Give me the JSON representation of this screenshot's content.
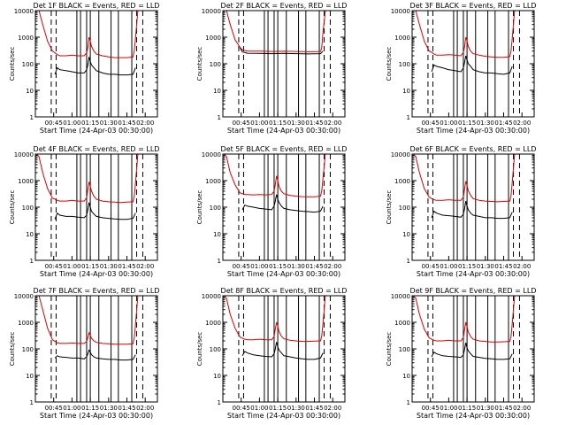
{
  "chart_data": {
    "type": "line",
    "layout": "3x3 grid of detector light curves",
    "xlabel": "Start Time (24-Apr-03 00:30:00)",
    "ylabel": "Counts/sec",
    "xticks": [
      "00:45",
      "01:00",
      "01:15",
      "01:30",
      "01:45",
      "02:00"
    ],
    "xtick_minutes": [
      15,
      30,
      45,
      60,
      75,
      90
    ],
    "xlim_minutes": [
      0,
      100
    ],
    "yscale": "log",
    "ylim": [
      1,
      10000
    ],
    "yticks": [
      "1",
      "10",
      "100",
      "1000",
      "10000"
    ],
    "ytick_values": [
      1,
      10,
      100,
      1000,
      10000
    ],
    "colors": {
      "events": "#000000",
      "lld": "#dd0000",
      "axes": "#000000"
    },
    "panels": [
      {
        "title": "Det 1F BLACK = Events, RED = LLD",
        "series": [
          {
            "name": "Events",
            "color": "#000000",
            "x": [
              16,
              18,
              20,
              25,
              30,
              35,
              40,
              42,
              43,
              44,
              45,
              46,
              48,
              50,
              55,
              60,
              65,
              70,
              75,
              80,
              82
            ],
            "y": [
              40,
              70,
              60,
              55,
              50,
              45,
              45,
              60,
              90,
              180,
              120,
              90,
              70,
              55,
              45,
              40,
              40,
              38,
              38,
              40,
              70
            ]
          },
          {
            "name": "LLD",
            "color": "#dd0000",
            "x": [
              3,
              6,
              10,
              14,
              16,
              18,
              20,
              25,
              30,
              35,
              40,
              42,
              43,
              44,
              45,
              46,
              48,
              50,
              55,
              60,
              65,
              70,
              75,
              80,
              81,
              82,
              84
            ],
            "y": [
              10000,
              3000,
              700,
              300,
              260,
              220,
              200,
              200,
              210,
              200,
              200,
              260,
              400,
              1000,
              700,
              450,
              300,
              230,
              200,
              180,
              170,
              170,
              170,
              180,
              300,
              900,
              10000
            ]
          }
        ]
      },
      {
        "title": "Det 2F BLACK = Events, RED = LLD",
        "series": [
          {
            "name": "Events",
            "color": "#000000",
            "x": [
              14,
              16,
              20,
              30,
              40,
              50,
              60,
              70,
              80,
              82
            ],
            "y": [
              400,
              280,
              250,
              245,
              240,
              245,
              240,
              235,
              240,
              300
            ]
          },
          {
            "name": "LLD",
            "color": "#dd0000",
            "x": [
              3,
              6,
              10,
              14,
              16,
              20,
              30,
              40,
              50,
              60,
              70,
              80,
              81,
              82,
              84
            ],
            "y": [
              10000,
              3000,
              800,
              420,
              330,
              300,
              300,
              290,
              295,
              290,
              285,
              290,
              400,
              1500,
              10000
            ]
          }
        ]
      },
      {
        "title": "Det 3F BLACK = Events, RED = LLD",
        "series": [
          {
            "name": "Events",
            "color": "#000000",
            "x": [
              16,
              18,
              20,
              25,
              30,
              35,
              40,
              42,
              43,
              44,
              45,
              46,
              48,
              50,
              55,
              60,
              65,
              70,
              75,
              80,
              82
            ],
            "y": [
              50,
              90,
              80,
              70,
              60,
              55,
              50,
              70,
              110,
              200,
              140,
              100,
              80,
              60,
              50,
              45,
              45,
              42,
              40,
              45,
              80
            ]
          },
          {
            "name": "LLD",
            "color": "#dd0000",
            "x": [
              3,
              6,
              10,
              14,
              16,
              18,
              20,
              25,
              30,
              35,
              40,
              42,
              43,
              44,
              45,
              46,
              48,
              50,
              55,
              60,
              65,
              70,
              75,
              80,
              81,
              82,
              84
            ],
            "y": [
              10000,
              3000,
              700,
              300,
              270,
              230,
              210,
              210,
              220,
              210,
              200,
              270,
              420,
              1000,
              700,
              450,
              300,
              240,
              210,
              190,
              180,
              175,
              175,
              185,
              300,
              900,
              10000
            ]
          }
        ]
      },
      {
        "title": "Det 4F BLACK = Events, RED = LLD",
        "series": [
          {
            "name": "Events",
            "color": "#000000",
            "x": [
              16,
              18,
              20,
              25,
              30,
              35,
              40,
              42,
              43,
              44,
              45,
              46,
              48,
              50,
              55,
              60,
              65,
              70,
              75,
              80,
              82
            ],
            "y": [
              35,
              60,
              50,
              45,
              45,
              42,
              40,
              50,
              80,
              150,
              100,
              70,
              55,
              45,
              40,
              38,
              36,
              35,
              35,
              38,
              60
            ]
          },
          {
            "name": "LLD",
            "color": "#dd0000",
            "x": [
              1,
              3,
              6,
              10,
              14,
              16,
              18,
              20,
              25,
              30,
              35,
              40,
              42,
              43,
              44,
              45,
              46,
              48,
              50,
              55,
              60,
              65,
              70,
              75,
              80,
              81,
              82,
              84
            ],
            "y": [
              10000,
              8000,
              2000,
              500,
              220,
              200,
              180,
              170,
              170,
              180,
              170,
              170,
              230,
              450,
              900,
              600,
              400,
              260,
              200,
              170,
              160,
              155,
              150,
              155,
              160,
              250,
              800,
              10000
            ]
          }
        ]
      },
      {
        "title": "Det 5F BLACK = Events, RED = LLD",
        "series": [
          {
            "name": "Events",
            "color": "#000000",
            "x": [
              16,
              18,
              20,
              25,
              30,
              35,
              40,
              42,
              43,
              44,
              45,
              46,
              48,
              50,
              55,
              60,
              65,
              70,
              75,
              80,
              82
            ],
            "y": [
              80,
              120,
              110,
              100,
              90,
              85,
              80,
              110,
              170,
              300,
              200,
              150,
              110,
              90,
              80,
              75,
              70,
              68,
              65,
              70,
              110
            ]
          },
          {
            "name": "LLD",
            "color": "#dd0000",
            "x": [
              1,
              3,
              6,
              10,
              14,
              16,
              18,
              20,
              25,
              30,
              35,
              40,
              42,
              43,
              44,
              45,
              46,
              48,
              50,
              55,
              60,
              65,
              70,
              75,
              80,
              81,
              82,
              84
            ],
            "y": [
              10000,
              8000,
              2000,
              700,
              350,
              320,
              300,
              300,
              290,
              300,
              290,
              300,
              400,
              700,
              1500,
              1000,
              600,
              400,
              320,
              280,
              260,
              250,
              245,
              245,
              260,
              400,
              1200,
              10000
            ]
          }
        ]
      },
      {
        "title": "Det 6F BLACK = Events, RED = LLD",
        "series": [
          {
            "name": "Events",
            "color": "#000000",
            "x": [
              16,
              18,
              20,
              25,
              30,
              35,
              40,
              42,
              43,
              44,
              45,
              46,
              48,
              50,
              55,
              60,
              65,
              70,
              75,
              80,
              82
            ],
            "y": [
              40,
              70,
              60,
              50,
              48,
              45,
              42,
              55,
              85,
              170,
              110,
              80,
              60,
              50,
              45,
              40,
              40,
              38,
              38,
              40,
              65
            ]
          },
          {
            "name": "LLD",
            "color": "#dd0000",
            "x": [
              1,
              3,
              6,
              10,
              14,
              16,
              18,
              20,
              25,
              30,
              35,
              40,
              42,
              43,
              44,
              45,
              46,
              48,
              50,
              55,
              60,
              65,
              70,
              75,
              80,
              81,
              82,
              84
            ],
            "y": [
              10000,
              8000,
              2000,
              500,
              240,
              210,
              190,
              180,
              180,
              190,
              180,
              180,
              240,
              480,
              950,
              650,
              420,
              280,
              210,
              180,
              170,
              165,
              160,
              165,
              170,
              260,
              850,
              10000
            ]
          }
        ]
      },
      {
        "title": "Det 7F BLACK = Events, RED = LLD",
        "series": [
          {
            "name": "Events",
            "color": "#000000",
            "x": [
              16,
              18,
              20,
              25,
              30,
              35,
              40,
              42,
              43,
              44,
              45,
              46,
              48,
              50,
              55,
              60,
              65,
              70,
              75,
              80,
              82
            ],
            "y": [
              45,
              55,
              50,
              48,
              45,
              45,
              42,
              50,
              65,
              90,
              75,
              60,
              50,
              45,
              42,
              40,
              40,
              38,
              38,
              40,
              60
            ]
          },
          {
            "name": "LLD",
            "color": "#dd0000",
            "x": [
              3,
              6,
              10,
              14,
              16,
              18,
              20,
              25,
              30,
              35,
              40,
              42,
              43,
              44,
              45,
              46,
              48,
              50,
              55,
              60,
              65,
              70,
              75,
              80,
              81,
              82,
              84
            ],
            "y": [
              10000,
              3000,
              600,
              220,
              190,
              170,
              160,
              160,
              165,
              160,
              160,
              190,
              260,
              400,
              320,
              250,
              200,
              175,
              160,
              155,
              150,
              150,
              150,
              155,
              250,
              800,
              10000
            ]
          }
        ]
      },
      {
        "title": "Det 8F BLACK = Events, RED = LLD",
        "series": [
          {
            "name": "Events",
            "color": "#000000",
            "x": [
              16,
              18,
              20,
              25,
              30,
              35,
              40,
              42,
              43,
              44,
              45,
              46,
              48,
              50,
              55,
              60,
              65,
              70,
              75,
              80,
              82
            ],
            "y": [
              55,
              80,
              70,
              60,
              55,
              52,
              50,
              65,
              100,
              180,
              120,
              90,
              70,
              55,
              50,
              45,
              42,
              40,
              40,
              45,
              70
            ]
          },
          {
            "name": "LLD",
            "color": "#dd0000",
            "x": [
              1,
              3,
              6,
              10,
              14,
              16,
              18,
              20,
              25,
              30,
              35,
              40,
              42,
              43,
              44,
              45,
              46,
              48,
              50,
              55,
              60,
              65,
              70,
              75,
              80,
              81,
              82,
              84
            ],
            "y": [
              10000,
              8000,
              2000,
              600,
              280,
              250,
              230,
              220,
              220,
              230,
              220,
              220,
              290,
              550,
              1000,
              700,
              450,
              300,
              240,
              210,
              200,
              190,
              190,
              195,
              200,
              300,
              900,
              10000
            ]
          }
        ]
      },
      {
        "title": "Det 9F BLACK = Events, RED = LLD",
        "series": [
          {
            "name": "Events",
            "color": "#000000",
            "x": [
              16,
              18,
              20,
              25,
              30,
              35,
              40,
              42,
              43,
              44,
              45,
              46,
              48,
              50,
              55,
              60,
              65,
              70,
              75,
              80,
              82
            ],
            "y": [
              50,
              75,
              65,
              55,
              52,
              50,
              48,
              60,
              95,
              170,
              110,
              85,
              65,
              52,
              48,
              44,
              42,
              40,
              40,
              42,
              65
            ]
          },
          {
            "name": "LLD",
            "color": "#dd0000",
            "x": [
              1,
              3,
              6,
              10,
              14,
              16,
              18,
              20,
              25,
              30,
              35,
              40,
              42,
              43,
              44,
              45,
              46,
              48,
              50,
              55,
              60,
              65,
              70,
              75,
              80,
              81,
              82,
              84
            ],
            "y": [
              10000,
              8000,
              2000,
              550,
              260,
              230,
              210,
              200,
              200,
              210,
              200,
              200,
              270,
              520,
              1000,
              680,
              430,
              290,
              230,
              200,
              190,
              180,
              180,
              185,
              190,
              280,
              880,
              10000
            ]
          }
        ]
      }
    ]
  }
}
